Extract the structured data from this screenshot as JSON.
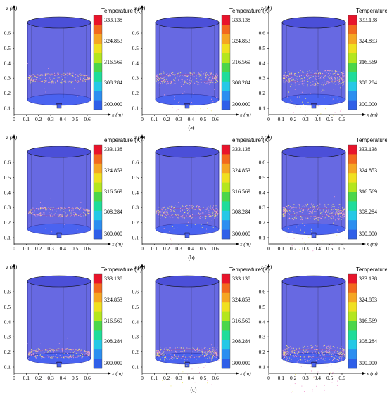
{
  "figure": {
    "rows": [
      {
        "label": "(a)",
        "particle_level_z": 0.3,
        "particle_spread": 0.012
      },
      {
        "label": "(b)",
        "particle_level_z": 0.27,
        "particle_spread": 0.012
      },
      {
        "label": "(c)",
        "particle_level_z": 0.19,
        "particle_spread": 0.012
      }
    ],
    "columns": 3,
    "axes": {
      "z_label": "z (m)",
      "x_label": "x (m)",
      "z_ticks": [
        "0.1",
        "0.2",
        "0.3",
        "0.4",
        "0.5",
        "0.6"
      ],
      "x_ticks": [
        "0",
        "0.1",
        "0.2",
        "0.3",
        "0.4",
        "0.5",
        "0.6"
      ]
    },
    "colorbar": {
      "title": "Temperature (K)",
      "labels": [
        "333.138",
        "324.853",
        "316.569",
        "308.284",
        "300.000"
      ],
      "colors": [
        "#e8142b",
        "#f2691e",
        "#f5a623",
        "#f0e020",
        "#b4e61e",
        "#4cd64a",
        "#1fdc9a",
        "#25c8e6",
        "#2c8ef0",
        "#2f5fe8"
      ]
    },
    "colors": {
      "tank_fill": "#5a5ce0",
      "tank_top": "#4b4fd8",
      "tank_bottom": "#4a63f0",
      "tank_edge": "#202080",
      "particle_a": "#f0a0d0",
      "particle_b": "#f0e878"
    }
  }
}
